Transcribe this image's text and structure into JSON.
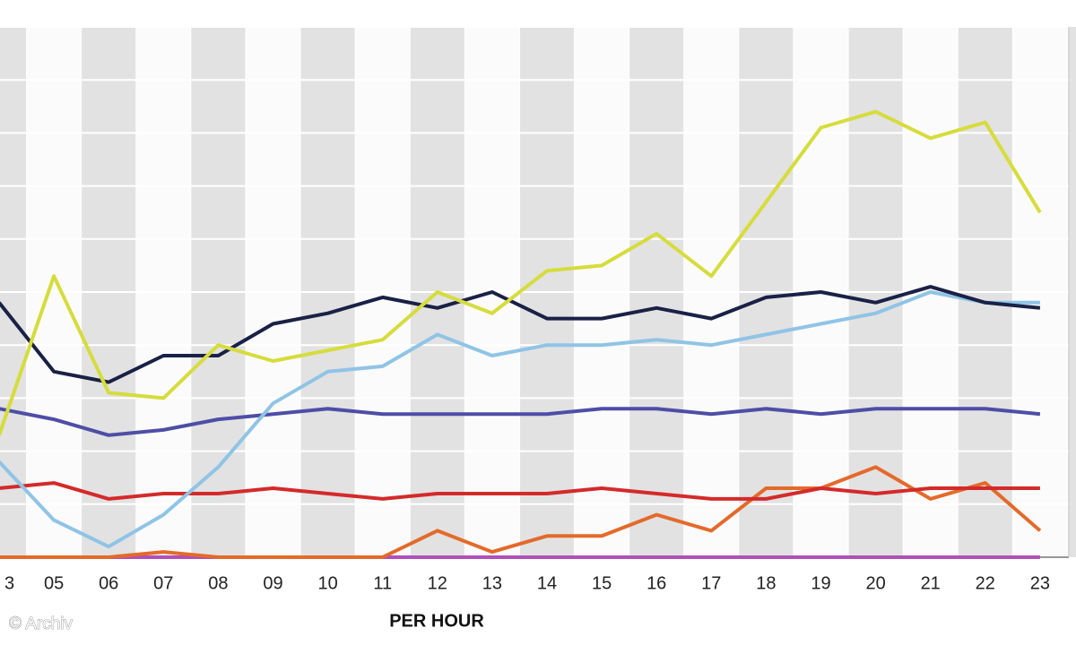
{
  "chart_data": {
    "type": "line",
    "x_label": "PER HOUR",
    "credit": "© Archiv",
    "categories": [
      "3",
      "05",
      "06",
      "07",
      "08",
      "09",
      "10",
      "11",
      "12",
      "13",
      "14",
      "15",
      "16",
      "17",
      "18",
      "19",
      "20",
      "21",
      "22",
      "23"
    ],
    "ylim": [
      0,
      10
    ],
    "series": [
      {
        "color": "#d6dc3c",
        "values": [
          2.3,
          5.3,
          3.1,
          3.0,
          4.0,
          3.7,
          3.9,
          4.1,
          5.0,
          4.6,
          5.4,
          5.5,
          6.1,
          5.3,
          6.7,
          8.1,
          8.4,
          7.9,
          8.2,
          6.5
        ]
      },
      {
        "color": "#1a2146",
        "values": [
          4.8,
          3.5,
          3.3,
          3.8,
          3.8,
          4.4,
          4.6,
          4.9,
          4.7,
          5.0,
          4.5,
          4.5,
          4.7,
          4.5,
          4.9,
          5.0,
          4.8,
          5.1,
          4.8,
          4.7
        ]
      },
      {
        "color": "#8fc4e6",
        "values": [
          1.8,
          0.7,
          0.2,
          0.8,
          1.7,
          2.9,
          3.5,
          3.6,
          4.2,
          3.8,
          4.0,
          4.0,
          4.1,
          4.0,
          4.2,
          4.4,
          4.6,
          5.0,
          4.8,
          4.8
        ]
      },
      {
        "color": "#4e4ea6",
        "values": [
          2.8,
          2.6,
          2.3,
          2.4,
          2.6,
          2.7,
          2.8,
          2.7,
          2.7,
          2.7,
          2.7,
          2.8,
          2.8,
          2.7,
          2.8,
          2.7,
          2.8,
          2.8,
          2.8,
          2.7
        ]
      },
      {
        "color": "#d42a2a",
        "values": [
          1.3,
          1.4,
          1.1,
          1.2,
          1.2,
          1.3,
          1.2,
          1.1,
          1.2,
          1.2,
          1.2,
          1.3,
          1.2,
          1.1,
          1.1,
          1.3,
          1.2,
          1.3,
          1.3,
          1.3
        ]
      },
      {
        "color": "#e46a2a",
        "values": [
          0,
          0,
          0,
          0.1,
          0,
          0,
          0,
          0,
          0.5,
          0.1,
          0.4,
          0.4,
          0.8,
          0.5,
          1.3,
          1.3,
          1.7,
          1.1,
          1.4,
          0.5
        ]
      },
      {
        "color": "#b050b8",
        "values": [
          0,
          0,
          0,
          0,
          0,
          0,
          0,
          0,
          0,
          0,
          0,
          0,
          0,
          0,
          0,
          0,
          0,
          0,
          0,
          0
        ]
      }
    ]
  }
}
